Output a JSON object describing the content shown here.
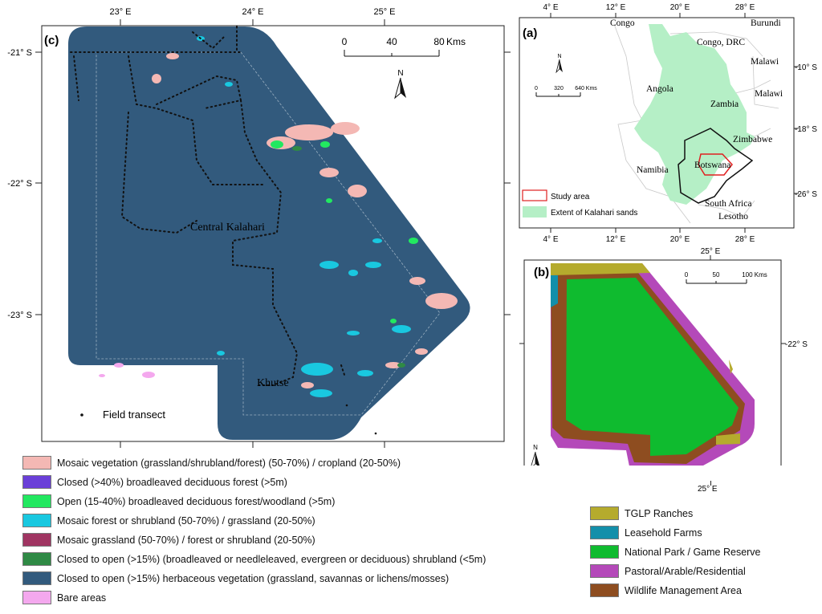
{
  "panel_c": {
    "label": "(c)",
    "lon_ticks": [
      "23° E",
      "24° E",
      "25° E"
    ],
    "lat_ticks": [
      "-21° S",
      "-22° S",
      "-23° S"
    ],
    "scale": {
      "ticks": [
        "0",
        "40",
        "80"
      ],
      "unit": "Kms"
    },
    "north": "N",
    "places": {
      "central": "Central Kalahari",
      "khutse": "Khutse"
    },
    "transect_label": "Field transect",
    "colors": {
      "background": "#325a7d",
      "mosaic_veg": "#f4b8b4",
      "mosaic_forest": "#19c8e0",
      "open_forest": "#22e860",
      "closed_shrub": "#2f8a45",
      "bare": "#f4a8ee",
      "closed_forest": "#6a3fd8",
      "mosaic_grass": "#a03562"
    }
  },
  "panel_a": {
    "label": "(a)",
    "lon_ticks": [
      "4° E",
      "12° E",
      "20° E",
      "28° E"
    ],
    "lat_ticks": [
      "-10° S",
      "-18° S",
      "-26° S"
    ],
    "scale": {
      "ticks": [
        "0",
        "320",
        "640 Kms"
      ]
    },
    "north": "N",
    "countries": [
      "Congo",
      "Burundi",
      "Congo, DRC",
      "Malawi",
      "Malawi",
      "Angola",
      "Zambia",
      "Zimbabwe",
      "Namibia",
      "Botswana",
      "South Africa",
      "Lesotho"
    ],
    "legend": {
      "study_area": "Study area",
      "kalahari": "Extent of Kalahari sands"
    },
    "colors": {
      "kalahari": "#b5efc6",
      "study": "#e02020"
    }
  },
  "panel_b": {
    "label": "(b)",
    "lon_ticks": [
      "25° E",
      "25° E"
    ],
    "lat_ticks": [
      "-22° S"
    ],
    "scale": {
      "ticks": [
        "0",
        "50",
        "100 Kms"
      ]
    },
    "north": "N",
    "colors": {
      "tglp": "#b5ab2d",
      "leasehold": "#138faa",
      "park": "#0fbb2f",
      "pastoral": "#b449b9",
      "wma": "#8e4d20"
    }
  },
  "legend_c": [
    {
      "label": "Mosaic vegetation (grassland/shrubland/forest) (50-70%) / cropland (20-50%)",
      "color": "#f4b8b4"
    },
    {
      "label": "Closed (>40%) broadleaved deciduous forest (>5m)",
      "color": "#6a3fd8"
    },
    {
      "label": "Open (15-40%) broadleaved deciduous forest/woodland (>5m)",
      "color": "#22e860"
    },
    {
      "label": "Mosaic forest or shrubland (50-70%) / grassland (20-50%)",
      "color": "#19c8e0"
    },
    {
      "label": "Mosaic grassland (50-70%) / forest or shrubland (20-50%)",
      "color": "#a03562"
    },
    {
      "label": "Closed to open (>15%) (broadleaved or needleleaved, evergreen or deciduous) shrubland (<5m)",
      "color": "#2f8a45"
    },
    {
      "label": "Closed to open (>15%) herbaceous vegetation (grassland, savannas or lichens/mosses)",
      "color": "#325a7d"
    },
    {
      "label": "Bare areas",
      "color": "#f4a8ee"
    }
  ],
  "legend_b": [
    {
      "label": "TGLP Ranches",
      "color": "#b5ab2d"
    },
    {
      "label": "Leasehold Farms",
      "color": "#138faa"
    },
    {
      "label": "National Park / Game Reserve",
      "color": "#0fbb2f"
    },
    {
      "label": "Pastoral/Arable/Residential",
      "color": "#b449b9"
    },
    {
      "label": "Wildlife Management Area",
      "color": "#8e4d20"
    }
  ]
}
